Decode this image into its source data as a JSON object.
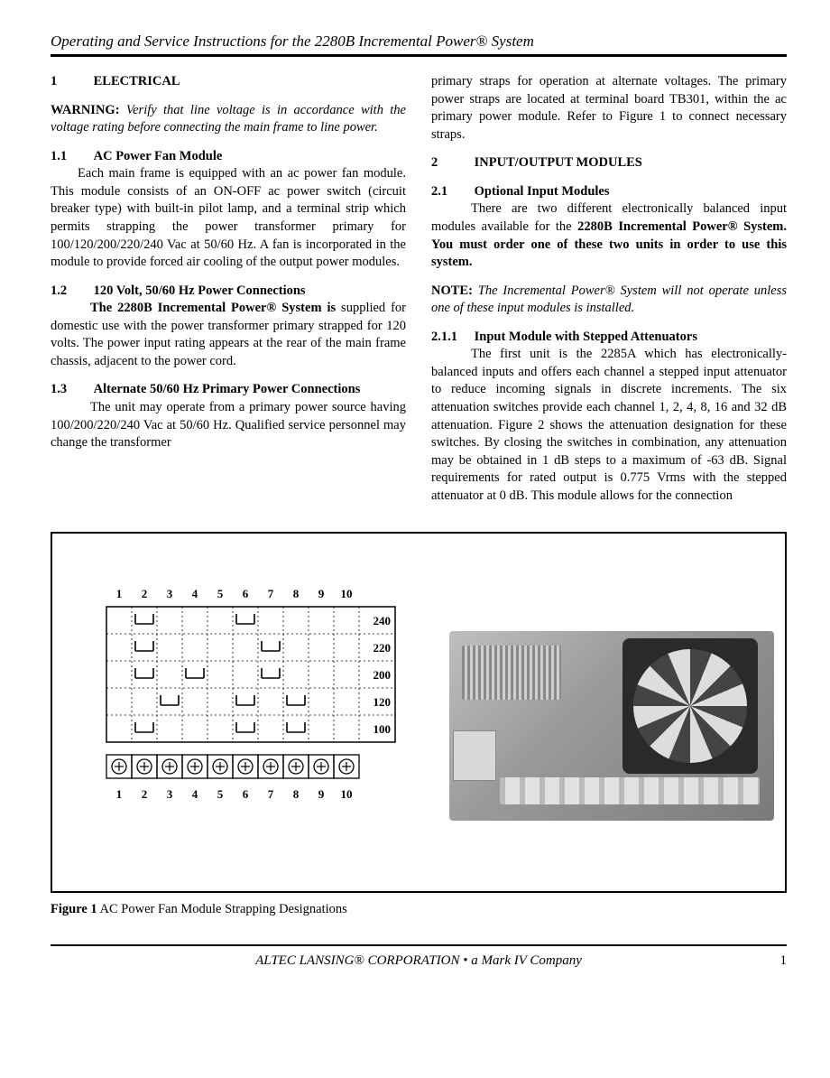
{
  "header": {
    "title": "Operating and Service Instructions for the 2280B Incremental Power® System"
  },
  "left": {
    "s1_num": "1",
    "s1_title": "ELECTRICAL",
    "warning_label": "WARNING:",
    "warning_text": "Verify that line voltage is in accordance with the voltage rating before connecting the main frame to line power.",
    "s11_num": "1.1",
    "s11_title": "AC Power Fan Module",
    "s11_body": "Each main frame is equipped with an ac power fan module. This module consists of an ON-OFF ac power switch (circuit breaker type) with built-in pilot lamp, and a terminal strip which permits strapping the power transformer primary for 100/120/200/220/240 Vac at 50/60 Hz. A fan is incorporated in the module to provide forced air cooling of the output power modules.",
    "s12_num": "1.2",
    "s12_title": "120 Volt, 50/60 Hz Power Connections",
    "s12_lead": "The 2280B Incremental Power® System is",
    "s12_body": "supplied for domestic use with the power transformer primary strapped for 120 volts. The power input rating appears at the rear of the main frame chassis, adjacent to the power cord.",
    "s13_num": "1.3",
    "s13_title": "Alternate 50/60 Hz Primary Power Connections",
    "s13_body": "The unit may operate from a primary power source having 100/200/220/240 Vac at 50/60 Hz. Qualified service personnel may change the transformer"
  },
  "right": {
    "cont": "primary straps for operation at alternate voltages. The primary power straps are located at terminal board TB301, within the ac primary power module. Refer to Figure 1 to connect necessary straps.",
    "s2_num": "2",
    "s2_title": "INPUT/OUTPUT MODULES",
    "s21_num": "2.1",
    "s21_title": "Optional Input Modules",
    "s21_lead": "There are two different electronically balanced input modules available for the ",
    "s21_bold": "2280B Incremental Power® System. You must order one of these two units in order to use this system.",
    "note_label": "NOTE:",
    "note_text": "The Incremental Power® System will not operate unless one of these input modules is installed.",
    "s211_num": "2.1.1",
    "s211_title": "Input Module with Stepped Attenuators",
    "s211_body": "The first unit is the 2285A which has electronically-balanced inputs and offers each channel a stepped input attenuator to reduce incoming signals in discrete increments. The six attenuation switches provide each channel 1, 2, 4, 8, 16 and 32 dB attenuation. Figure 2 shows the attenuation designation for these switches. By closing the switches in combination, any attenuation may be obtained in 1 dB steps to a maximum of -63 dB. Signal requirements for rated output is 0.775 Vrms with the stepped attenuator at 0 dB. This module allows for the connection"
  },
  "figure": {
    "col_labels": [
      "1",
      "2",
      "3",
      "4",
      "5",
      "6",
      "7",
      "8",
      "9",
      "10"
    ],
    "rows": [
      {
        "v": "240",
        "straps": [
          2,
          6
        ]
      },
      {
        "v": "220",
        "straps": [
          2,
          7
        ]
      },
      {
        "v": "200",
        "straps": [
          2,
          4,
          7
        ]
      },
      {
        "v": "120",
        "straps": [
          3,
          6,
          8
        ]
      },
      {
        "v": "100",
        "straps": [
          2,
          6,
          8
        ]
      }
    ],
    "caption_bold": "Figure 1",
    "caption_rest": " AC Power Fan Module Strapping Designations",
    "colors": {
      "stroke": "#000000",
      "dash": "#000000"
    }
  },
  "footer": {
    "corp": "ALTEC LANSING® CORPORATION • a Mark IV Company",
    "page": "1"
  }
}
